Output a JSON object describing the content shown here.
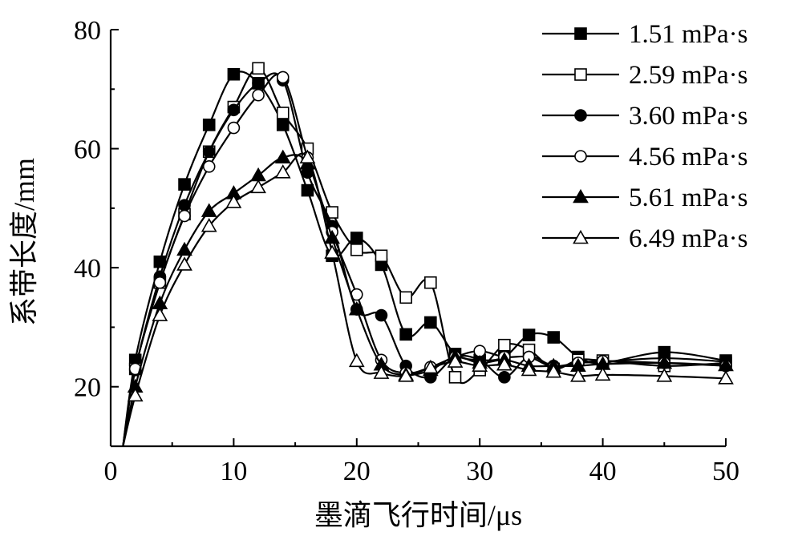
{
  "chart_data": {
    "type": "scatter",
    "xlabel": "墨滴飞行时间/μs",
    "ylabel": "系带长度/mm",
    "xlim": [
      0,
      50
    ],
    "ylim": [
      10,
      80
    ],
    "x_ticks": [
      "0",
      "10",
      "20",
      "30",
      "40",
      "50"
    ],
    "y_ticks": [
      "20",
      "40",
      "60",
      "80"
    ],
    "grid": false,
    "legend_position": "top-right",
    "series": [
      {
        "name": "1.51 mPa·s",
        "marker": "square-filled",
        "x": [
          2,
          4,
          6,
          8,
          10,
          12,
          14,
          16,
          18,
          20,
          22,
          24,
          26,
          28,
          30,
          32,
          34,
          36,
          38,
          40,
          45,
          50
        ],
        "y": [
          24.5,
          41,
          54,
          64,
          72.5,
          71,
          64,
          53,
          42,
          45,
          40.5,
          28.8,
          30.8,
          25.5,
          24.5,
          25,
          28.7,
          28.3,
          25,
          24,
          25.8,
          24.4
        ]
      },
      {
        "name": "2.59 mPa·s",
        "marker": "square-open",
        "x": [
          2,
          4,
          6,
          8,
          10,
          12,
          14,
          16,
          18,
          20,
          22,
          24,
          26,
          28,
          30,
          32,
          34,
          36,
          38,
          40,
          45,
          50
        ],
        "y": [
          23,
          37.5,
          49,
          59.5,
          67,
          73.5,
          66,
          60,
          49.3,
          43,
          42,
          35,
          37.5,
          21.6,
          22.8,
          27,
          26.2,
          23,
          24.5,
          24.4,
          23.5,
          24
        ]
      },
      {
        "name": "3.60 mPa·s",
        "marker": "circle-filled",
        "x": [
          2,
          4,
          6,
          8,
          10,
          12,
          14,
          16,
          18,
          20,
          22,
          24,
          26,
          28,
          30,
          32,
          34,
          36,
          38,
          40,
          45,
          50
        ],
        "y": [
          22.8,
          38.5,
          50.5,
          59.5,
          66.5,
          71,
          71.5,
          56,
          47,
          33,
          32,
          23.5,
          21.6,
          25,
          24.5,
          21.6,
          25,
          23.5,
          24,
          24.2,
          24.8,
          24.2
        ]
      },
      {
        "name": "4.56 mPa·s",
        "marker": "circle-open",
        "x": [
          2,
          4,
          6,
          8,
          10,
          12,
          14,
          16,
          18,
          20,
          22,
          24,
          26,
          28,
          30,
          32,
          34,
          36,
          38,
          40,
          45,
          50
        ],
        "y": [
          23,
          37.5,
          48.7,
          57,
          63.5,
          69,
          72,
          58.5,
          46,
          35.5,
          24.5,
          22.3,
          23.3,
          25,
          26,
          25,
          25,
          23.3,
          24,
          24.3,
          24,
          23.5
        ]
      },
      {
        "name": "5.61 mPa·s",
        "marker": "triangle-filled",
        "x": [
          2,
          4,
          6,
          8,
          10,
          12,
          14,
          16,
          18,
          20,
          22,
          24,
          26,
          28,
          30,
          32,
          34,
          36,
          38,
          40,
          45,
          50
        ],
        "y": [
          20,
          34,
          43,
          49.5,
          52.5,
          55.5,
          58.5,
          57.5,
          45,
          33,
          23.7,
          22,
          22.8,
          25,
          24,
          24.5,
          23.5,
          23.5,
          23.5,
          23.8,
          24,
          23.6
        ]
      },
      {
        "name": "6.49 mPa·s",
        "marker": "triangle-open",
        "x": [
          2,
          4,
          6,
          8,
          10,
          12,
          14,
          16,
          18,
          20,
          22,
          24,
          26,
          28,
          30,
          32,
          34,
          36,
          38,
          40,
          45,
          50
        ],
        "y": [
          18.5,
          32,
          40.5,
          47,
          51,
          53.5,
          56,
          58.5,
          42.5,
          24.3,
          22.3,
          21.8,
          23.2,
          24.2,
          23.5,
          23.7,
          22.8,
          22.5,
          21.8,
          22,
          21.8,
          21.4
        ]
      }
    ]
  }
}
